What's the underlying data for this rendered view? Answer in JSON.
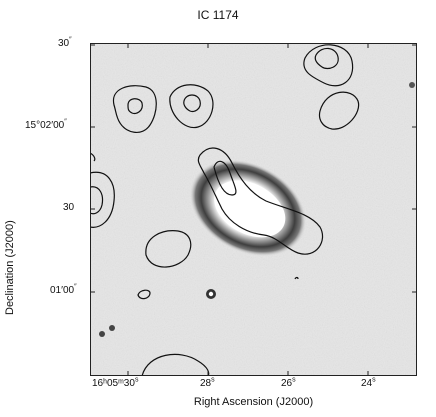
{
  "figure": {
    "title": "IC 1174",
    "xlabel": "Right Ascension (J2000)",
    "ylabel": "Declination (J2000)",
    "y_ticks": [
      {
        "main": "30",
        "sup": "″"
      },
      {
        "main": "15°02′00",
        "sup": "″"
      },
      {
        "main": "30",
        "sup": ""
      },
      {
        "main": "01′00",
        "sup": "″"
      }
    ],
    "x_ticks": [
      {
        "main": "16ʰ05ᵐ30",
        "sup": "s"
      },
      {
        "main": "28",
        "sup": "s"
      },
      {
        "main": "26",
        "sup": "s"
      },
      {
        "main": "24",
        "sup": "s"
      }
    ]
  },
  "colors": {
    "background": "#e6e6e6",
    "galaxy_core": "#ffffff",
    "galaxy_halo": "#3a3a3a",
    "contour": "#111111",
    "frame": "#222222"
  }
}
